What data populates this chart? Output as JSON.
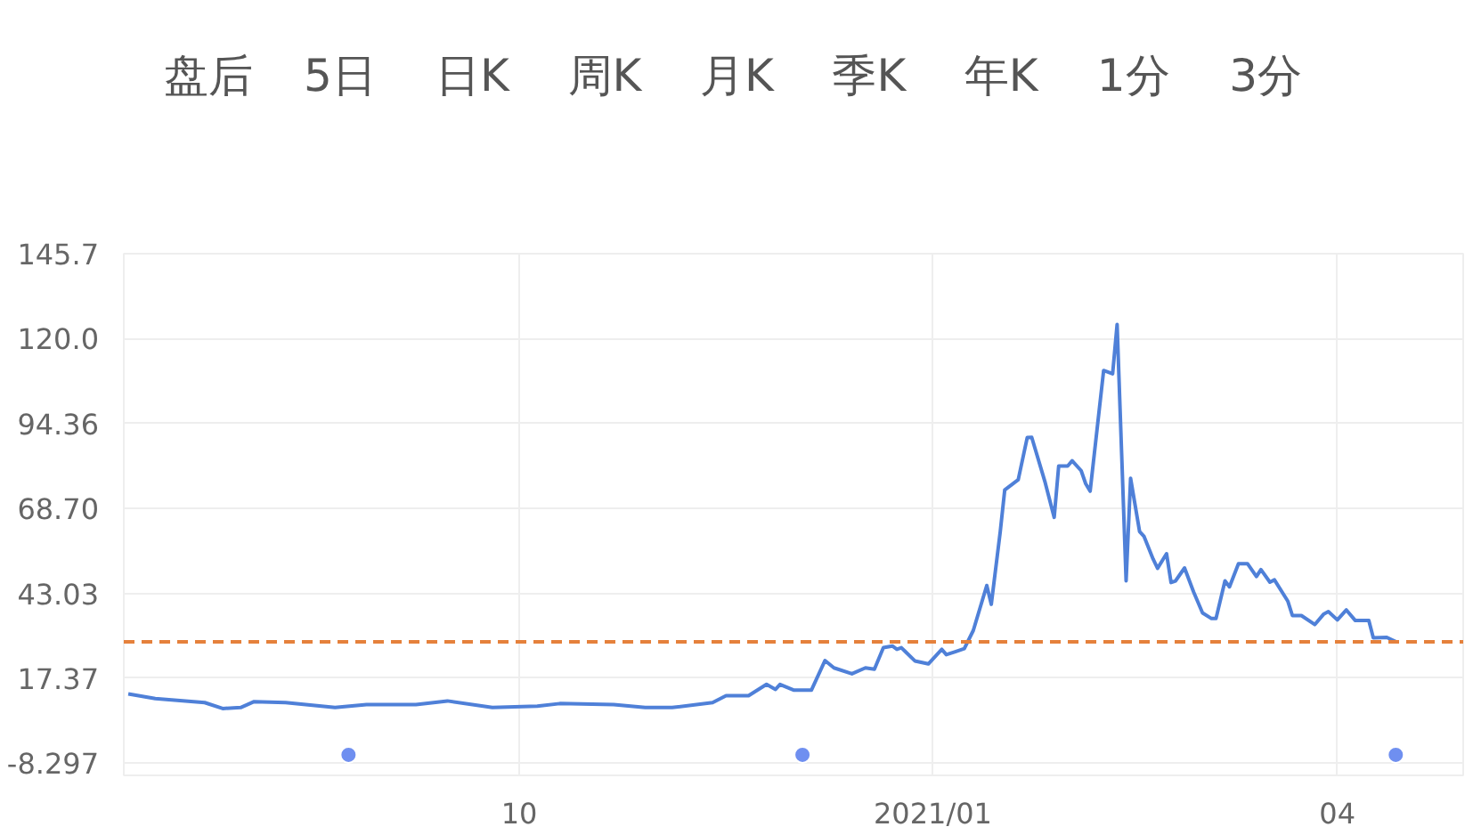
{
  "chart_data": {
    "type": "line",
    "annotations": [
      "盘后",
      "5日",
      "日K",
      "周K",
      "月K",
      "季K",
      "年K",
      "1分",
      "3分"
    ],
    "xlim": [
      "2020-07-05",
      "2021-04-29"
    ],
    "xticks": [
      {
        "value": "2020-10-01",
        "label": "10"
      },
      {
        "value": "2021-01-01",
        "label": "2021/01"
      },
      {
        "value": "2021-04-01",
        "label": "04"
      }
    ],
    "ylim": [
      -12,
      145.7
    ],
    "yticks": [
      -8.297,
      17.37,
      43.03,
      {
        "value": 68.7,
        "label": "68.70"
      },
      94.36,
      {
        "value": 120,
        "label": "120.0"
      },
      145.7
    ],
    "grid": true,
    "ref_lines": [
      {
        "axis": "y",
        "value": 28.4,
        "color": "#e5813c",
        "line_style": "dashed"
      }
    ],
    "series": [
      {
        "color": "#4f80d8",
        "x": [
          "2020-07-06",
          "2020-07-12",
          "2020-07-23",
          "2020-07-27",
          "2020-07-31",
          "2020-08-03",
          "2020-08-10",
          "2020-08-21",
          "2020-08-28",
          "2020-09-08",
          "2020-09-15",
          "2020-09-25",
          "2020-10-05",
          "2020-10-10",
          "2020-10-22",
          "2020-10-29",
          "2020-11-04",
          "2020-11-13",
          "2020-11-16",
          "2020-11-21",
          "2020-11-25",
          "2020-11-27",
          "2020-11-28",
          "2020-12-01",
          "2020-12-05",
          "2020-12-08",
          "2020-12-10",
          "2020-12-14",
          "2020-12-17",
          "2020-12-19",
          "2020-12-21",
          "2020-12-23",
          "2020-12-24",
          "2020-12-25",
          "2020-12-28",
          "2020-12-31",
          "2021-01-03",
          "2021-01-04",
          "2021-01-06",
          "2021-01-08",
          "2021-01-10",
          "2021-01-13",
          "2021-01-14",
          "2021-01-16",
          "2021-01-17",
          "2021-01-20",
          "2021-01-22",
          "2021-01-23",
          "2021-01-26",
          "2021-01-28",
          "2021-01-29",
          "2021-01-31",
          "2021-02-01",
          "2021-02-03",
          "2021-02-04",
          "2021-02-05",
          "2021-02-08",
          "2021-02-10",
          "2021-02-11",
          "2021-02-13",
          "2021-02-14",
          "2021-02-16",
          "2021-02-17",
          "2021-02-19",
          "2021-02-20",
          "2021-02-22",
          "2021-02-23",
          "2021-02-24",
          "2021-02-26",
          "2021-02-28",
          "2021-03-02",
          "2021-03-04",
          "2021-03-05",
          "2021-03-07",
          "2021-03-08",
          "2021-03-10",
          "2021-03-12",
          "2021-03-14",
          "2021-03-15",
          "2021-03-17",
          "2021-03-18",
          "2021-03-21",
          "2021-03-22",
          "2021-03-24",
          "2021-03-27",
          "2021-03-29",
          "2021-03-30",
          "2021-04-01",
          "2021-04-03",
          "2021-04-05",
          "2021-04-08",
          "2021-04-09",
          "2021-04-12",
          "2021-04-14"
        ],
        "values": [
          12.6,
          11.2,
          10.0,
          8.2,
          8.5,
          10.3,
          10.0,
          8.5,
          9.4,
          9.4,
          10.5,
          8.5,
          8.9,
          9.7,
          9.4,
          8.5,
          8.5,
          10.0,
          12.1,
          12.1,
          15.5,
          14.0,
          15.5,
          13.8,
          13.8,
          22.7,
          20.5,
          18.7,
          20.5,
          20.1,
          26.6,
          27.1,
          26.1,
          26.6,
          22.6,
          21.7,
          26.1,
          24.5,
          25.4,
          26.3,
          31.8,
          45.4,
          39.7,
          61.7,
          74.3,
          77.4,
          90.1,
          90.2,
          76.5,
          66.0,
          81.5,
          81.5,
          83.1,
          80.1,
          76.2,
          73.9,
          110.4,
          109.4,
          124.3,
          46.8,
          77.8,
          61.7,
          60.2,
          53.4,
          50.6,
          55.0,
          46.3,
          46.8,
          50.7,
          43.5,
          37.1,
          35.4,
          35.4,
          46.8,
          45.0,
          52.0,
          52.0,
          48.1,
          50.2,
          46.4,
          47.1,
          40.6,
          36.3,
          36.3,
          33.6,
          36.8,
          37.5,
          35.0,
          38.0,
          34.8,
          34.8,
          29.6,
          29.7,
          28.4
        ]
      },
      {
        "type": "scatter",
        "color": "#6f8ff0",
        "marker": "circle",
        "x": [
          "2020-08-24",
          "2020-12-03",
          "2021-04-14"
        ],
        "values": [
          -5.8,
          -5.8,
          -5.8
        ]
      }
    ]
  }
}
